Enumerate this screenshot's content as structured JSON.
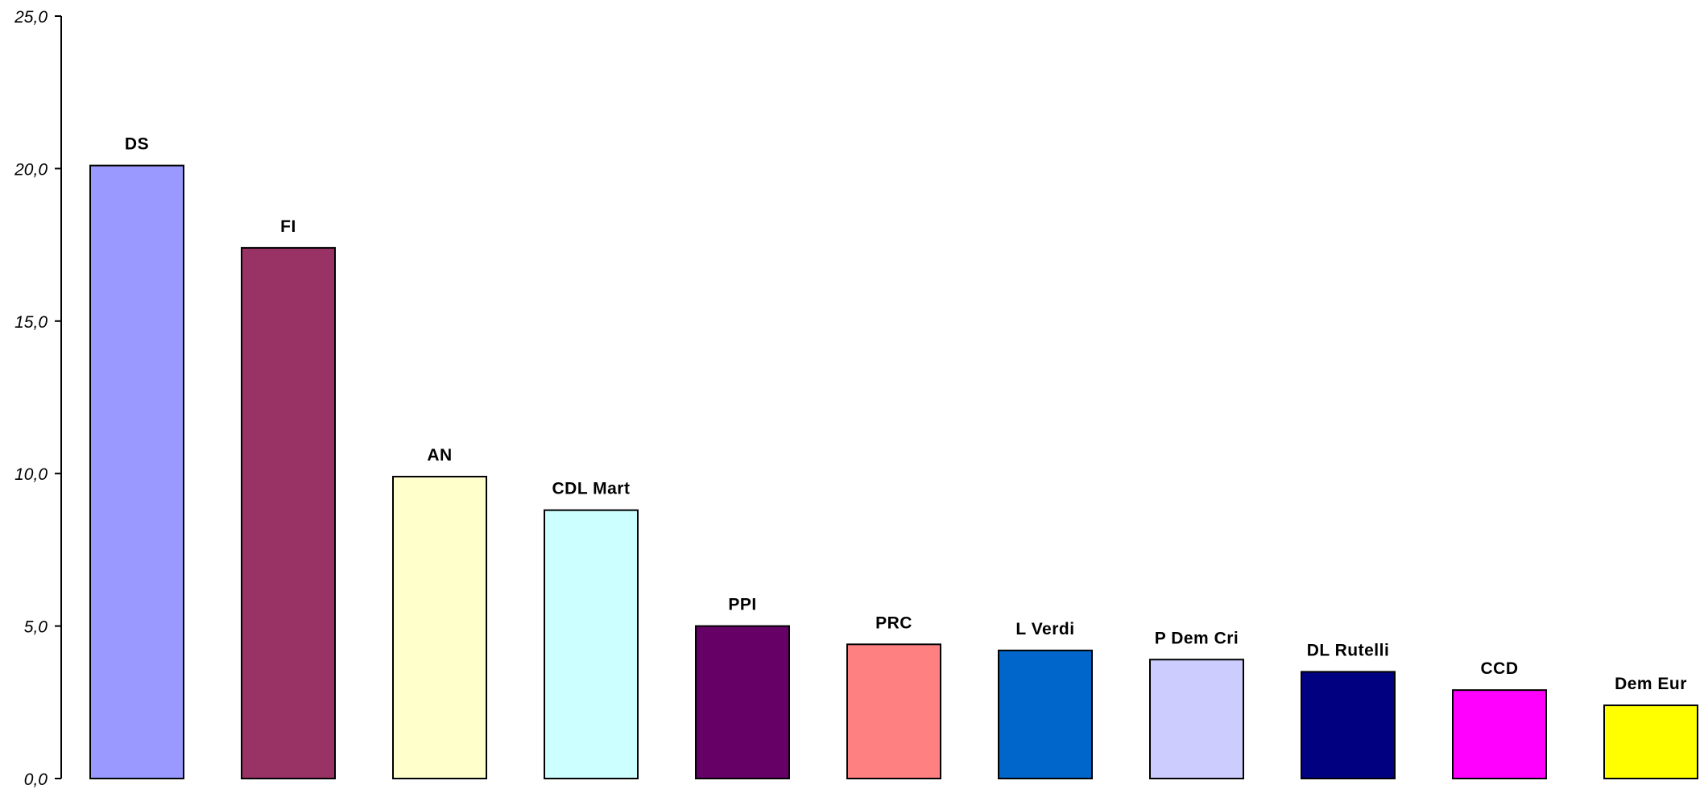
{
  "chart_data": {
    "type": "bar",
    "title": "",
    "xlabel": "",
    "ylabel": "",
    "ylim": [
      0,
      25
    ],
    "yticks": [
      0,
      5,
      10,
      15,
      20,
      25
    ],
    "ytick_labels": [
      "0,0",
      "5,0",
      "10,0",
      "15,0",
      "20,0",
      "25,0"
    ],
    "grid": false,
    "legend": "none",
    "categories": [
      "DS",
      "FI",
      "AN",
      "CDL Mart",
      "PPI",
      "PRC",
      "L Verdi",
      "P Dem Cri",
      "DL Rutelli",
      "CCD",
      "Dem Eur"
    ],
    "values": [
      20.1,
      17.4,
      9.9,
      8.8,
      5.0,
      4.4,
      4.2,
      3.9,
      3.5,
      2.9,
      2.4
    ],
    "colors": [
      "#9999FF",
      "#993366",
      "#FFFFCC",
      "#CCFFFF",
      "#660066",
      "#FF8080",
      "#0066CC",
      "#CCCCFF",
      "#000080",
      "#FF00FF",
      "#FFFF00"
    ]
  }
}
